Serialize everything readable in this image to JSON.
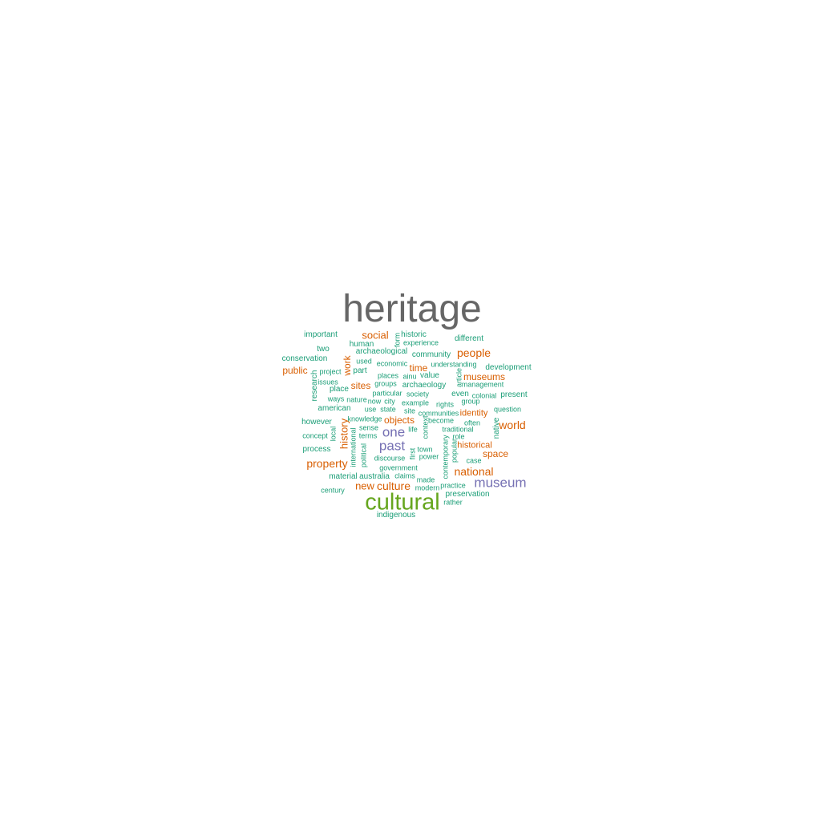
{
  "palette": {
    "gray": "#666666",
    "green": "#66a61e",
    "purple": "#7570b3",
    "orange": "#d95f02",
    "teal": "#1b9e77"
  },
  "words": [
    {
      "text": "heritage",
      "color": "gray",
      "weight": 1.0
    },
    {
      "text": "cultural",
      "color": "green",
      "weight": 0.6
    },
    {
      "text": "museum",
      "color": "purple",
      "weight": 0.36
    },
    {
      "text": "past",
      "color": "purple",
      "weight": 0.36
    },
    {
      "text": "one",
      "color": "purple",
      "weight": 0.36
    },
    {
      "text": "people",
      "color": "orange",
      "weight": 0.28
    },
    {
      "text": "national",
      "color": "orange",
      "weight": 0.28
    },
    {
      "text": "world",
      "color": "orange",
      "weight": 0.28
    },
    {
      "text": "property",
      "color": "orange",
      "weight": 0.28
    },
    {
      "text": "culture",
      "color": "orange",
      "weight": 0.28
    },
    {
      "text": "social",
      "color": "orange",
      "weight": 0.25
    },
    {
      "text": "history",
      "color": "orange",
      "weight": 0.25
    },
    {
      "text": "new",
      "color": "orange",
      "weight": 0.25
    },
    {
      "text": "space",
      "color": "orange",
      "weight": 0.25
    },
    {
      "text": "museums",
      "color": "orange",
      "weight": 0.25
    },
    {
      "text": "public",
      "color": "orange",
      "weight": 0.25
    },
    {
      "text": "time",
      "color": "orange",
      "weight": 0.23
    },
    {
      "text": "sites",
      "color": "orange",
      "weight": 0.23
    },
    {
      "text": "objects",
      "color": "orange",
      "weight": 0.23
    },
    {
      "text": "work",
      "color": "orange",
      "weight": 0.23
    },
    {
      "text": "identity",
      "color": "orange",
      "weight": 0.2
    },
    {
      "text": "historical",
      "color": "orange",
      "weight": 0.2
    },
    {
      "text": "important",
      "color": "teal",
      "weight": 0.18
    },
    {
      "text": "historic",
      "color": "teal",
      "weight": 0.18
    },
    {
      "text": "different",
      "color": "teal",
      "weight": 0.18
    },
    {
      "text": "human",
      "color": "teal",
      "weight": 0.18
    },
    {
      "text": "two",
      "color": "teal",
      "weight": 0.18
    },
    {
      "text": "archaeological",
      "color": "teal",
      "weight": 0.18
    },
    {
      "text": "community",
      "color": "teal",
      "weight": 0.18
    },
    {
      "text": "conservation",
      "color": "teal",
      "weight": 0.18
    },
    {
      "text": "development",
      "color": "teal",
      "weight": 0.18
    },
    {
      "text": "archaeology",
      "color": "teal",
      "weight": 0.18
    },
    {
      "text": "american",
      "color": "teal",
      "weight": 0.18
    },
    {
      "text": "however",
      "color": "teal",
      "weight": 0.18
    },
    {
      "text": "process",
      "color": "teal",
      "weight": 0.18
    },
    {
      "text": "present",
      "color": "teal",
      "weight": 0.18
    },
    {
      "text": "material",
      "color": "teal",
      "weight": 0.18
    },
    {
      "text": "australia",
      "color": "teal",
      "weight": 0.18
    },
    {
      "text": "preservation",
      "color": "teal",
      "weight": 0.18
    },
    {
      "text": "indigenous",
      "color": "teal",
      "weight": 0.18
    },
    {
      "text": "research",
      "color": "teal",
      "weight": 0.18
    },
    {
      "text": "place",
      "color": "teal",
      "weight": 0.18
    },
    {
      "text": "part",
      "color": "teal",
      "weight": 0.18
    },
    {
      "text": "value",
      "color": "teal",
      "weight": 0.18
    },
    {
      "text": "even",
      "color": "teal",
      "weight": 0.18
    },
    {
      "text": "century",
      "color": "teal",
      "weight": 0.16
    },
    {
      "text": "experience",
      "color": "teal",
      "weight": 0.15
    },
    {
      "text": "used",
      "color": "teal",
      "weight": 0.15
    },
    {
      "text": "economic",
      "color": "teal",
      "weight": 0.15
    },
    {
      "text": "understanding",
      "color": "teal",
      "weight": 0.15
    },
    {
      "text": "project",
      "color": "teal",
      "weight": 0.15
    },
    {
      "text": "places",
      "color": "teal",
      "weight": 0.15
    },
    {
      "text": "ainu",
      "color": "teal",
      "weight": 0.15
    },
    {
      "text": "management",
      "color": "teal",
      "weight": 0.15
    },
    {
      "text": "issues",
      "color": "teal",
      "weight": 0.15
    },
    {
      "text": "groups",
      "color": "teal",
      "weight": 0.15
    },
    {
      "text": "particular",
      "color": "teal",
      "weight": 0.15
    },
    {
      "text": "society",
      "color": "teal",
      "weight": 0.15
    },
    {
      "text": "colonial",
      "color": "teal",
      "weight": 0.15
    },
    {
      "text": "group",
      "color": "teal",
      "weight": 0.15
    },
    {
      "text": "ways",
      "color": "teal",
      "weight": 0.15
    },
    {
      "text": "nature",
      "color": "teal",
      "weight": 0.15
    },
    {
      "text": "now",
      "color": "teal",
      "weight": 0.15
    },
    {
      "text": "city",
      "color": "teal",
      "weight": 0.15
    },
    {
      "text": "example",
      "color": "teal",
      "weight": 0.15
    },
    {
      "text": "rights",
      "color": "teal",
      "weight": 0.15
    },
    {
      "text": "use",
      "color": "teal",
      "weight": 0.15
    },
    {
      "text": "state",
      "color": "teal",
      "weight": 0.15
    },
    {
      "text": "site",
      "color": "teal",
      "weight": 0.15
    },
    {
      "text": "communities",
      "color": "teal",
      "weight": 0.15
    },
    {
      "text": "question",
      "color": "teal",
      "weight": 0.15
    },
    {
      "text": "knowledge",
      "color": "teal",
      "weight": 0.15
    },
    {
      "text": "become",
      "color": "teal",
      "weight": 0.15
    },
    {
      "text": "often",
      "color": "teal",
      "weight": 0.15
    },
    {
      "text": "sense",
      "color": "teal",
      "weight": 0.15
    },
    {
      "text": "life",
      "color": "teal",
      "weight": 0.15
    },
    {
      "text": "traditional",
      "color": "teal",
      "weight": 0.15
    },
    {
      "text": "concept",
      "color": "teal",
      "weight": 0.15
    },
    {
      "text": "terms",
      "color": "teal",
      "weight": 0.15
    },
    {
      "text": "role",
      "color": "teal",
      "weight": 0.15
    },
    {
      "text": "town",
      "color": "teal",
      "weight": 0.15
    },
    {
      "text": "discourse",
      "color": "teal",
      "weight": 0.15
    },
    {
      "text": "power",
      "color": "teal",
      "weight": 0.15
    },
    {
      "text": "case",
      "color": "teal",
      "weight": 0.15
    },
    {
      "text": "government",
      "color": "teal",
      "weight": 0.15
    },
    {
      "text": "claims",
      "color": "teal",
      "weight": 0.15
    },
    {
      "text": "made",
      "color": "teal",
      "weight": 0.15
    },
    {
      "text": "modern",
      "color": "teal",
      "weight": 0.15
    },
    {
      "text": "practice",
      "color": "teal",
      "weight": 0.15
    },
    {
      "text": "rather",
      "color": "teal",
      "weight": 0.15
    },
    {
      "text": "form",
      "color": "teal",
      "weight": 0.15
    },
    {
      "text": "article",
      "color": "teal",
      "weight": 0.15
    },
    {
      "text": "local",
      "color": "teal",
      "weight": 0.15
    },
    {
      "text": "international",
      "color": "teal",
      "weight": 0.15
    },
    {
      "text": "political",
      "color": "teal",
      "weight": 0.15
    },
    {
      "text": "context",
      "color": "teal",
      "weight": 0.15
    },
    {
      "text": "first",
      "color": "teal",
      "weight": 0.15
    },
    {
      "text": "contemporary",
      "color": "teal",
      "weight": 0.15
    },
    {
      "text": "popular",
      "color": "teal",
      "weight": 0.15
    },
    {
      "text": "native",
      "color": "teal",
      "weight": 0.18
    }
  ]
}
